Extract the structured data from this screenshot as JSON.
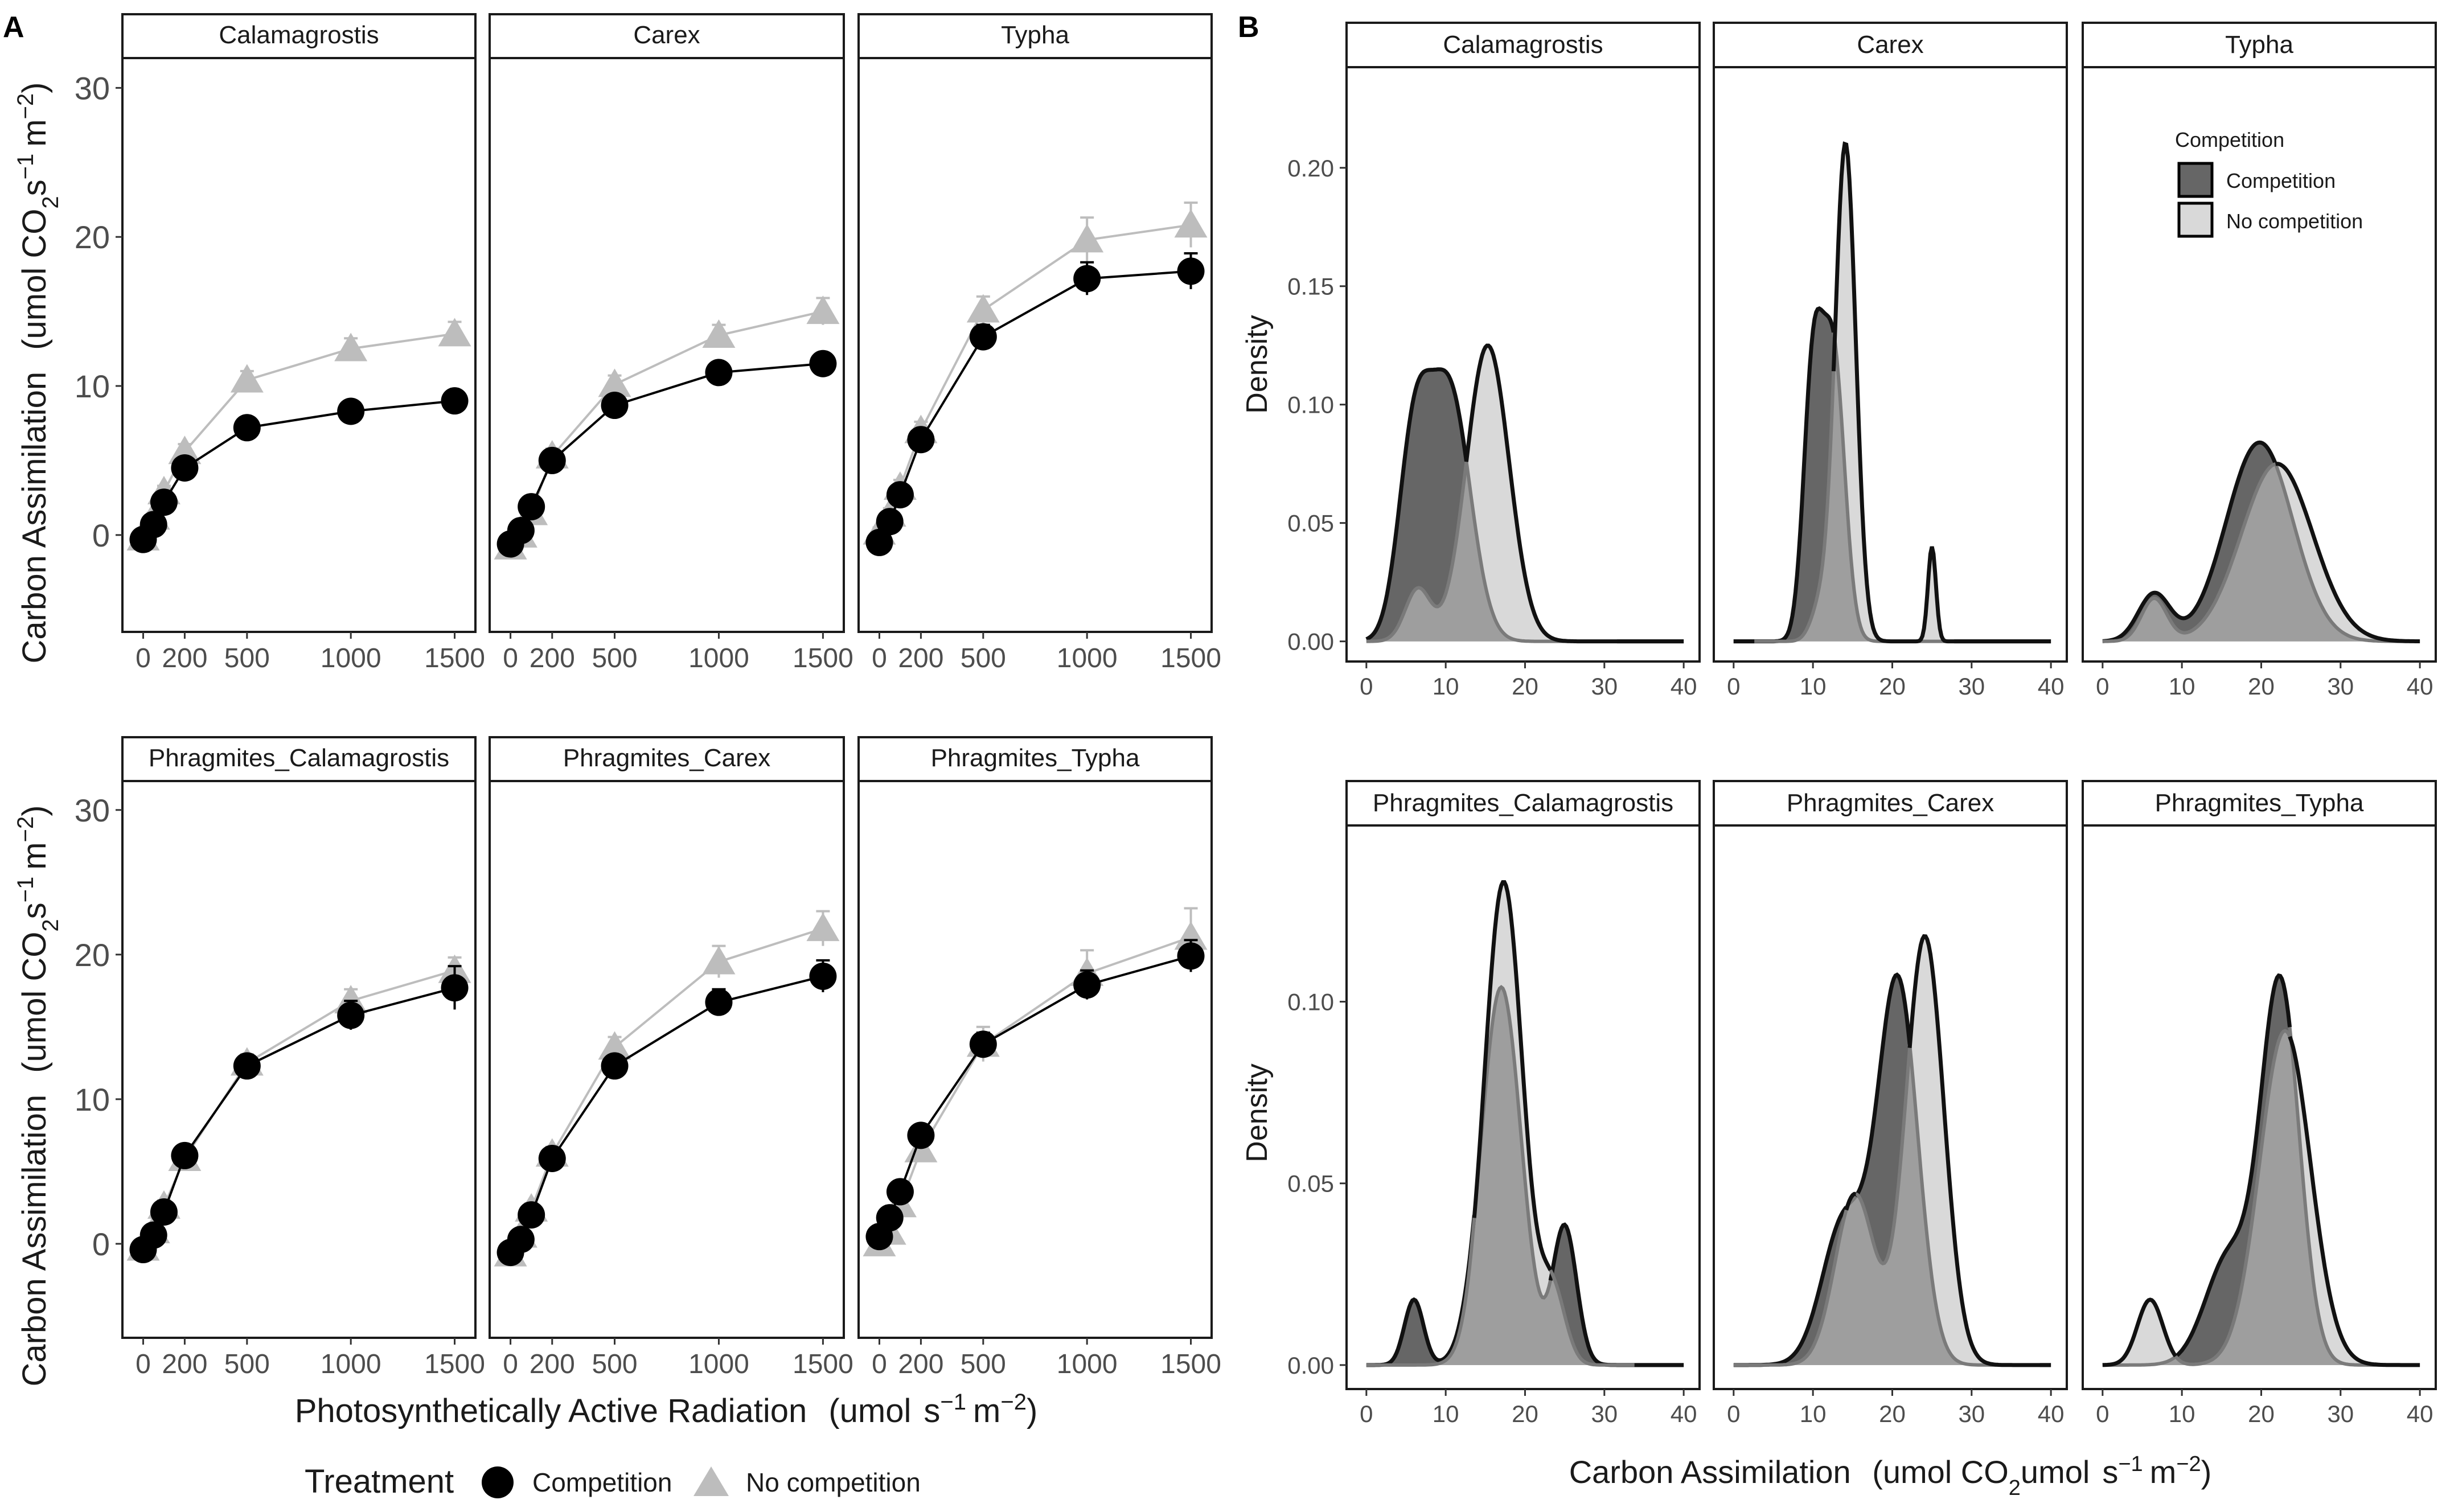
{
  "panel_labels": {
    "a": "A",
    "b": "B"
  },
  "colors": {
    "competition_a": "#000000",
    "no_competition_a": "#bdbdbd",
    "competition_density": "#666666",
    "no_competition_density": "#d9d9d9",
    "overlap_density": "#9e9e9e"
  },
  "panel_a": {
    "ylabel": "Carbon Assimilation",
    "ylabel_units": "(umol CO2s-1 m-2)",
    "xlabel": "Photosynthetically Active Radiation",
    "xlabel_units": "(umol s-1 m-2)",
    "legend": {
      "title": "Treatment",
      "items": [
        {
          "label": "Competition",
          "marker": "circle"
        },
        {
          "label": "No competition",
          "marker": "triangle"
        }
      ]
    }
  },
  "panel_b": {
    "ylabel": "Density",
    "xlabel": "Carbon Assimilation",
    "xlabel_units": "(umol CO2umol s-1 m-2)",
    "legend": {
      "title": "Competition",
      "items": [
        {
          "label": "Competition"
        },
        {
          "label": "No competition"
        }
      ]
    }
  },
  "chart_data": [
    {
      "type": "line",
      "panel": "A",
      "xlim": [
        -100,
        1600
      ],
      "ylim": [
        -6.5,
        32
      ],
      "xticks": [
        0,
        200,
        500,
        1000,
        1500
      ],
      "yticks": [
        0,
        10,
        20,
        30
      ],
      "facets": [
        {
          "title": "Calamagrostis",
          "series": [
            {
              "name": "Competition",
              "x": [
                0,
                50,
                100,
                200,
                500,
                1000,
                1500
              ],
              "y": [
                -0.3,
                0.7,
                2.2,
                4.5,
                7.2,
                8.3,
                9.0
              ],
              "err": [
                0.2,
                0.3,
                0.3,
                0.4,
                0.4,
                0.5,
                0.5
              ]
            },
            {
              "name": "No competition",
              "x": [
                0,
                50,
                100,
                200,
                500,
                1000,
                1500
              ],
              "y": [
                -0.2,
                1.2,
                2.9,
                5.6,
                10.4,
                12.5,
                13.5
              ],
              "err": [
                0.3,
                0.3,
                0.4,
                0.5,
                0.6,
                0.7,
                0.8
              ]
            }
          ]
        },
        {
          "title": "Carex",
          "series": [
            {
              "name": "Competition",
              "x": [
                0,
                50,
                100,
                200,
                500,
                1000,
                1500
              ],
              "y": [
                -0.6,
                0.3,
                1.9,
                5.0,
                8.7,
                10.9,
                11.5
              ],
              "err": [
                0.2,
                0.3,
                0.4,
                0.4,
                0.5,
                0.5,
                0.6
              ]
            },
            {
              "name": "No competition",
              "x": [
                0,
                50,
                100,
                200,
                500,
                1000,
                1500
              ],
              "y": [
                -0.8,
                0.0,
                1.5,
                5.3,
                10.1,
                13.4,
                15.0
              ],
              "err": [
                0.2,
                0.3,
                0.4,
                0.5,
                0.6,
                0.7,
                0.9
              ]
            }
          ]
        },
        {
          "title": "Typha",
          "series": [
            {
              "name": "Competition",
              "x": [
                0,
                50,
                100,
                200,
                500,
                1000,
                1500
              ],
              "y": [
                -0.5,
                0.9,
                2.7,
                6.4,
                13.3,
                17.2,
                17.7
              ],
              "err": [
                0.3,
                0.4,
                0.5,
                0.6,
                0.8,
                1.1,
                1.2
              ]
            },
            {
              "name": "No competition",
              "x": [
                0,
                50,
                100,
                200,
                500,
                1000,
                1500
              ],
              "y": [
                0.2,
                1.4,
                3.2,
                7.0,
                15.1,
                19.8,
                20.8
              ],
              "err": [
                0.3,
                0.4,
                0.5,
                0.6,
                0.9,
                1.5,
                1.5
              ]
            }
          ]
        },
        {
          "title": "Phragmites_Calamagrostis",
          "series": [
            {
              "name": "Competition",
              "x": [
                0,
                50,
                100,
                200,
                500,
                1000,
                1500
              ],
              "y": [
                -0.4,
                0.6,
                2.2,
                6.1,
                12.3,
                15.8,
                17.7
              ],
              "err": [
                0.2,
                0.3,
                0.4,
                0.5,
                0.6,
                1.0,
                1.5
              ]
            },
            {
              "name": "No competition",
              "x": [
                0,
                50,
                100,
                200,
                500,
                1000,
                1500
              ],
              "y": [
                -0.3,
                0.9,
                2.6,
                5.9,
                12.5,
                16.8,
                18.9
              ],
              "err": [
                0.2,
                0.3,
                0.4,
                0.5,
                0.6,
                0.8,
                0.9
              ]
            }
          ]
        },
        {
          "title": "Phragmites_Carex",
          "series": [
            {
              "name": "Competition",
              "x": [
                0,
                50,
                100,
                200,
                500,
                1000,
                1500
              ],
              "y": [
                -0.6,
                0.3,
                2.0,
                5.9,
                12.3,
                16.7,
                18.5
              ],
              "err": [
                0.2,
                0.3,
                0.4,
                0.5,
                0.6,
                0.9,
                1.1
              ]
            },
            {
              "name": "No competition",
              "x": [
                0,
                50,
                100,
                200,
                500,
                1000,
                1500
              ],
              "y": [
                -0.7,
                0.6,
                2.4,
                6.2,
                13.6,
                19.5,
                21.8
              ],
              "err": [
                0.2,
                0.3,
                0.4,
                0.5,
                0.7,
                1.1,
                1.2
              ]
            }
          ]
        },
        {
          "title": "Phragmites_Typha",
          "series": [
            {
              "name": "Competition",
              "x": [
                0,
                50,
                100,
                200,
                500,
                1000,
                1500
              ],
              "y": [
                0.5,
                1.8,
                3.6,
                7.5,
                13.8,
                17.9,
                19.9
              ],
              "err": [
                0.3,
                0.4,
                0.5,
                0.6,
                0.8,
                1.0,
                1.1
              ]
            },
            {
              "name": "No competition",
              "x": [
                0,
                50,
                100,
                200,
                500,
                1000,
                1500
              ],
              "y": [
                0.0,
                0.8,
                2.7,
                6.5,
                13.8,
                18.7,
                21.2
              ],
              "err": [
                0.3,
                0.4,
                0.5,
                0.6,
                1.2,
                1.6,
                2.0
              ]
            }
          ]
        }
      ]
    },
    {
      "type": "area",
      "panel": "B",
      "xlim": [
        -2.5,
        42
      ],
      "xticks": [
        0,
        10,
        20,
        30,
        40
      ],
      "rows": [
        {
          "ylim": [
            -0.0085,
            0.2425
          ],
          "yticks": [
            0.0,
            0.05,
            0.1,
            0.15,
            0.2
          ]
        },
        {
          "ylim": [
            -0.0066,
            0.1485
          ],
          "yticks": [
            0.0,
            0.05,
            0.1
          ]
        }
      ],
      "facets": [
        {
          "title": "Calamagrostis",
          "series": [
            {
              "name": "Competition",
              "peaks": [
                [
                  6,
                  0.08,
                  2.0
                ],
                [
                  10.5,
                  0.105,
                  2.6
                ]
              ]
            },
            {
              "name": "No competition",
              "peaks": [
                [
                  6.5,
                  0.022,
                  1.6
                ],
                [
                  15.3,
                  0.125,
                  2.7
                ]
              ]
            }
          ]
        },
        {
          "title": "Carex",
          "series": [
            {
              "name": "Competition",
              "peaks": [
                [
                  10,
                  0.11,
                  1.2
                ],
                [
                  12.6,
                  0.12,
                  1.4
                ]
              ]
            },
            {
              "name": "No competition",
              "peaks": [
                [
                  14.1,
                  0.21,
                  1.3
                ],
                [
                  11,
                  0.015,
                  1.2
                ],
                [
                  25,
                  0.04,
                  0.5
                ]
              ]
            }
          ]
        },
        {
          "title": "Typha",
          "series": [
            {
              "name": "Competition",
              "peaks": [
                [
                  6.5,
                  0.02,
                  2.0
                ],
                [
                  19.8,
                  0.084,
                  4.2
                ]
              ]
            },
            {
              "name": "No competition",
              "peaks": [
                [
                  6.5,
                  0.018,
                  1.6
                ],
                [
                  22,
                  0.075,
                  4.5
                ]
              ]
            }
          ]
        },
        {
          "title": "Phragmites_Calamagrostis",
          "series": [
            {
              "name": "Competition",
              "peaks": [
                [
                  6,
                  0.018,
                  1.2
                ],
                [
                  17,
                  0.104,
                  2.5
                ],
                [
                  25,
                  0.038,
                  1.5
                ]
              ]
            },
            {
              "name": "No competition",
              "peaks": [
                [
                  17.3,
                  0.133,
                  2.4
                ],
                [
                  23.5,
                  0.02,
                  1.6
                ]
              ]
            }
          ]
        },
        {
          "title": "Phragmites_Carex",
          "series": [
            {
              "name": "Competition",
              "peaks": [
                [
                  14,
                  0.04,
                  2.8
                ],
                [
                  20.7,
                  0.105,
                  2.5
                ]
              ]
            },
            {
              "name": "No competition",
              "peaks": [
                [
                  15.3,
                  0.047,
                  2.5
                ],
                [
                  24.1,
                  0.118,
                  2.4
                ]
              ]
            }
          ]
        },
        {
          "title": "Phragmites_Typha",
          "series": [
            {
              "name": "Competition",
              "peaks": [
                [
                  16,
                  0.03,
                  3.0
                ],
                [
                  22.4,
                  0.104,
                  2.4
                ]
              ]
            },
            {
              "name": "No competition",
              "peaks": [
                [
                  6,
                  0.018,
                  1.6
                ],
                [
                  23,
                  0.092,
                  3.2
                ]
              ]
            }
          ]
        }
      ]
    }
  ]
}
